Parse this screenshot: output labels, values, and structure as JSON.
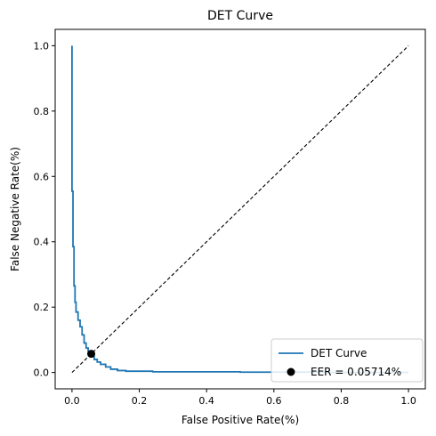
{
  "chart_data": {
    "type": "line",
    "title": "DET Curve",
    "xlabel": "False Positive Rate(%)",
    "ylabel": "False Negative Rate(%)",
    "xlim": [
      -0.05,
      1.05
    ],
    "ylim": [
      -0.05,
      1.05
    ],
    "xticks": [
      0.0,
      0.2,
      0.4,
      0.6,
      0.8,
      1.0
    ],
    "yticks": [
      0.0,
      0.2,
      0.4,
      0.6,
      0.8,
      1.0
    ],
    "xtick_labels": [
      "0.0",
      "0.2",
      "0.4",
      "0.6",
      "0.8",
      "1.0"
    ],
    "ytick_labels": [
      "0.0",
      "0.2",
      "0.4",
      "0.6",
      "0.8",
      "1.0"
    ],
    "grid": false,
    "legend_position": "lower-right",
    "series": [
      {
        "name": "DET Curve",
        "color": "#1f77b4",
        "style": "step",
        "x": [
          0.0,
          0.0,
          0.003,
          0.003,
          0.006,
          0.006,
          0.009,
          0.009,
          0.012,
          0.012,
          0.018,
          0.018,
          0.024,
          0.024,
          0.03,
          0.03,
          0.036,
          0.036,
          0.042,
          0.042,
          0.048,
          0.048,
          0.054,
          0.054,
          0.058,
          0.058,
          0.066,
          0.066,
          0.075,
          0.075,
          0.085,
          0.085,
          0.1,
          0.1,
          0.115,
          0.115,
          0.135,
          0.135,
          0.16,
          0.16,
          0.24,
          0.24,
          0.5,
          0.5,
          0.75,
          0.75,
          1.0
        ],
        "y": [
          1.0,
          0.555,
          0.555,
          0.385,
          0.385,
          0.265,
          0.265,
          0.215,
          0.215,
          0.185,
          0.185,
          0.16,
          0.16,
          0.14,
          0.14,
          0.115,
          0.115,
          0.09,
          0.09,
          0.075,
          0.075,
          0.065,
          0.065,
          0.057,
          0.057,
          0.05,
          0.05,
          0.04,
          0.04,
          0.032,
          0.032,
          0.025,
          0.025,
          0.017,
          0.017,
          0.01,
          0.01,
          0.006,
          0.006,
          0.004,
          0.004,
          0.002,
          0.002,
          0.001,
          0.001,
          0.0,
          0.0
        ]
      },
      {
        "name": "",
        "color": "#000000",
        "style": "dashed",
        "x": [
          0.0,
          1.0
        ],
        "y": [
          0.0,
          1.0
        ]
      }
    ],
    "points": [
      {
        "name": "EER = 0.05714%",
        "x": 0.05714,
        "y": 0.05714,
        "color": "#000000"
      }
    ]
  }
}
